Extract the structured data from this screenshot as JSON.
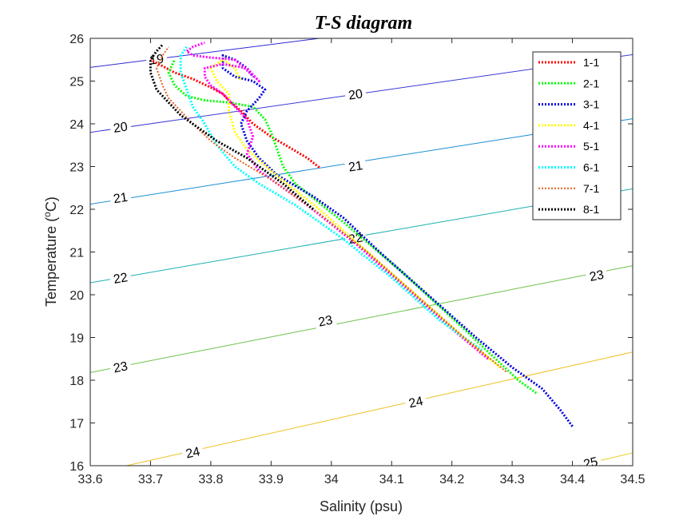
{
  "chart_data": {
    "type": "line",
    "title": "T-S diagram",
    "xlabel": "Salinity (psu)",
    "ylabel": "Temperature (",
    "ylabel_sup": "o",
    "ylabel_end": "C)",
    "xlim": [
      33.6,
      34.5
    ],
    "ylim": [
      16,
      26
    ],
    "x_ticks": [
      33.6,
      33.7,
      33.8,
      33.9,
      34.0,
      34.1,
      34.2,
      34.3,
      34.4,
      34.5
    ],
    "x_tick_labels": [
      "33.6",
      "33.7",
      "33.8",
      "33.9",
      "34",
      "34.1",
      "34.2",
      "34.3",
      "34.4",
      "34.5"
    ],
    "y_ticks": [
      16,
      17,
      18,
      19,
      20,
      21,
      22,
      23,
      24,
      25,
      26
    ],
    "y_tick_labels": [
      "16",
      "17",
      "18",
      "19",
      "20",
      "21",
      "22",
      "23",
      "24",
      "25",
      "26"
    ],
    "grid": false,
    "legend_position": "top-right",
    "contours": [
      {
        "level": 19,
        "label": "19",
        "color": "#2a2ad4",
        "x": [
          33.6,
          33.98
        ],
        "y": [
          25.32,
          26.0
        ],
        "labels": [
          [
            33.71,
            25.52
          ]
        ]
      },
      {
        "level": 20,
        "label": "20",
        "color": "#3a3ad8",
        "x": [
          33.6,
          34.5
        ],
        "y": [
          23.8,
          25.62
        ],
        "labels": [
          [
            33.65,
            23.93
          ],
          [
            34.04,
            24.7
          ]
        ]
      },
      {
        "level": 21,
        "label": "21",
        "color": "#1a8fd6",
        "x": [
          33.6,
          34.5
        ],
        "y": [
          22.12,
          24.12
        ],
        "labels": [
          [
            33.65,
            22.28
          ],
          [
            34.04,
            23.02
          ]
        ]
      },
      {
        "level": 22,
        "label": "22",
        "color": "#1ab0b0",
        "x": [
          33.6,
          34.5
        ],
        "y": [
          20.28,
          22.48
        ],
        "labels": [
          [
            33.65,
            20.4
          ],
          [
            34.04,
            21.33
          ]
        ]
      },
      {
        "level": 23,
        "label": "23",
        "color": "#6cc24a",
        "x": [
          33.6,
          34.5
        ],
        "y": [
          18.18,
          20.68
        ],
        "labels": [
          [
            33.65,
            18.32
          ],
          [
            33.99,
            19.4
          ],
          [
            34.44,
            20.46
          ]
        ]
      },
      {
        "level": 24,
        "label": "24",
        "color": "#f0c020",
        "x": [
          33.66,
          34.5
        ],
        "y": [
          16.0,
          18.66
        ],
        "labels": [
          [
            33.77,
            16.32
          ],
          [
            34.14,
            17.5
          ]
        ]
      },
      {
        "level": 25,
        "label": "25",
        "color": "#f0d020",
        "x": [
          34.41,
          34.5
        ],
        "y": [
          16.0,
          16.3
        ],
        "labels": [
          [
            34.43,
            16.08
          ]
        ]
      }
    ],
    "series": [
      {
        "name": "1-1",
        "color": "#ff0000",
        "style": "dotted",
        "width": 3,
        "x": [
          33.98,
          33.96,
          33.93,
          33.9,
          33.87,
          33.85,
          33.83,
          33.82,
          33.8,
          33.77,
          33.74,
          33.72,
          33.7
        ],
        "y": [
          22.98,
          23.2,
          23.45,
          23.7,
          24.0,
          24.3,
          24.55,
          24.7,
          24.85,
          25.05,
          25.2,
          25.35,
          25.5
        ]
      },
      {
        "name": "2-1",
        "color": "#00ff00",
        "style": "dotted",
        "width": 3,
        "x": [
          34.34,
          34.31,
          34.22,
          34.12,
          34.02,
          33.94,
          33.92,
          33.91,
          33.9,
          33.89,
          33.87,
          33.83,
          33.79,
          33.76,
          33.74,
          33.73,
          33.74
        ],
        "y": [
          17.7,
          18.0,
          19.2,
          20.5,
          21.7,
          22.6,
          23.0,
          23.4,
          23.8,
          24.1,
          24.4,
          24.5,
          24.55,
          24.65,
          24.9,
          25.2,
          25.5
        ]
      },
      {
        "name": "3-1",
        "color": "#0000dd",
        "style": "dotted",
        "width": 3,
        "x": [
          34.4,
          34.38,
          34.35,
          34.3,
          34.24,
          34.16,
          34.08,
          34.02,
          33.97,
          33.91,
          33.88,
          33.86,
          33.85,
          33.86,
          33.88,
          33.89,
          33.87,
          33.84,
          33.82,
          33.82,
          33.84,
          33.86,
          33.87
        ],
        "y": [
          16.92,
          17.3,
          17.8,
          18.3,
          19.0,
          20.0,
          21.0,
          21.8,
          22.3,
          22.8,
          23.2,
          23.6,
          24.0,
          24.3,
          24.6,
          24.8,
          25.0,
          25.1,
          25.3,
          25.6,
          25.5,
          25.3,
          25.1
        ]
      },
      {
        "name": "4-1",
        "color": "#ffff00",
        "style": "dotted",
        "width": 3,
        "x": [
          34.28,
          34.22,
          34.14,
          34.06,
          33.98,
          33.9,
          33.86,
          33.84,
          33.83,
          33.83,
          33.81,
          33.8,
          33.82,
          33.84,
          33.85
        ],
        "y": [
          18.3,
          19.0,
          20.0,
          21.0,
          22.0,
          22.9,
          23.4,
          23.8,
          24.3,
          24.7,
          25.0,
          25.3,
          25.5,
          25.3,
          25.0
        ]
      },
      {
        "name": "5-1",
        "color": "#ff00ff",
        "style": "dotted",
        "width": 3,
        "x": [
          34.26,
          34.2,
          34.12,
          34.04,
          33.96,
          33.88,
          33.86,
          33.87,
          33.86,
          33.84,
          33.82,
          33.8,
          33.79,
          33.79,
          33.82,
          33.86,
          33.88,
          33.84,
          33.8,
          33.77,
          33.76,
          33.77,
          33.79
        ],
        "y": [
          18.5,
          19.2,
          20.2,
          21.2,
          22.1,
          22.9,
          23.3,
          23.7,
          24.1,
          24.4,
          24.7,
          24.9,
          25.1,
          25.3,
          25.4,
          25.3,
          25.0,
          25.5,
          25.55,
          25.6,
          25.7,
          25.8,
          25.9
        ]
      },
      {
        "name": "6-1",
        "color": "#00ffff",
        "style": "dotted",
        "width": 3,
        "x": [
          34.25,
          34.18,
          34.1,
          34.02,
          33.94,
          33.88,
          33.84,
          33.81,
          33.79,
          33.77,
          33.76,
          33.75,
          33.75,
          33.76
        ],
        "y": [
          18.7,
          19.4,
          20.4,
          21.3,
          22.1,
          22.6,
          23.0,
          23.5,
          24.0,
          24.4,
          24.8,
          25.2,
          25.6,
          25.8
        ]
      },
      {
        "name": "7-1",
        "color": "#e06020",
        "style": "dotted",
        "width": 2,
        "x": [
          34.29,
          34.22,
          34.14,
          34.06,
          33.98,
          33.9,
          33.84,
          33.8,
          33.77,
          33.75,
          33.73,
          33.72,
          33.71,
          33.72,
          33.73
        ],
        "y": [
          18.2,
          19.0,
          20.0,
          21.0,
          21.9,
          22.7,
          23.2,
          23.6,
          24.0,
          24.3,
          24.6,
          24.9,
          25.3,
          25.6,
          25.8
        ]
      },
      {
        "name": "8-1",
        "color": "#000000",
        "style": "dotted",
        "width": 3,
        "x": [
          33.97,
          33.92,
          33.86,
          33.81,
          33.78,
          33.75,
          33.73,
          33.71,
          33.7,
          33.7,
          33.71,
          33.72
        ],
        "y": [
          22.0,
          22.6,
          23.2,
          23.6,
          23.9,
          24.2,
          24.5,
          24.8,
          25.2,
          25.5,
          25.7,
          25.85
        ]
      }
    ]
  }
}
